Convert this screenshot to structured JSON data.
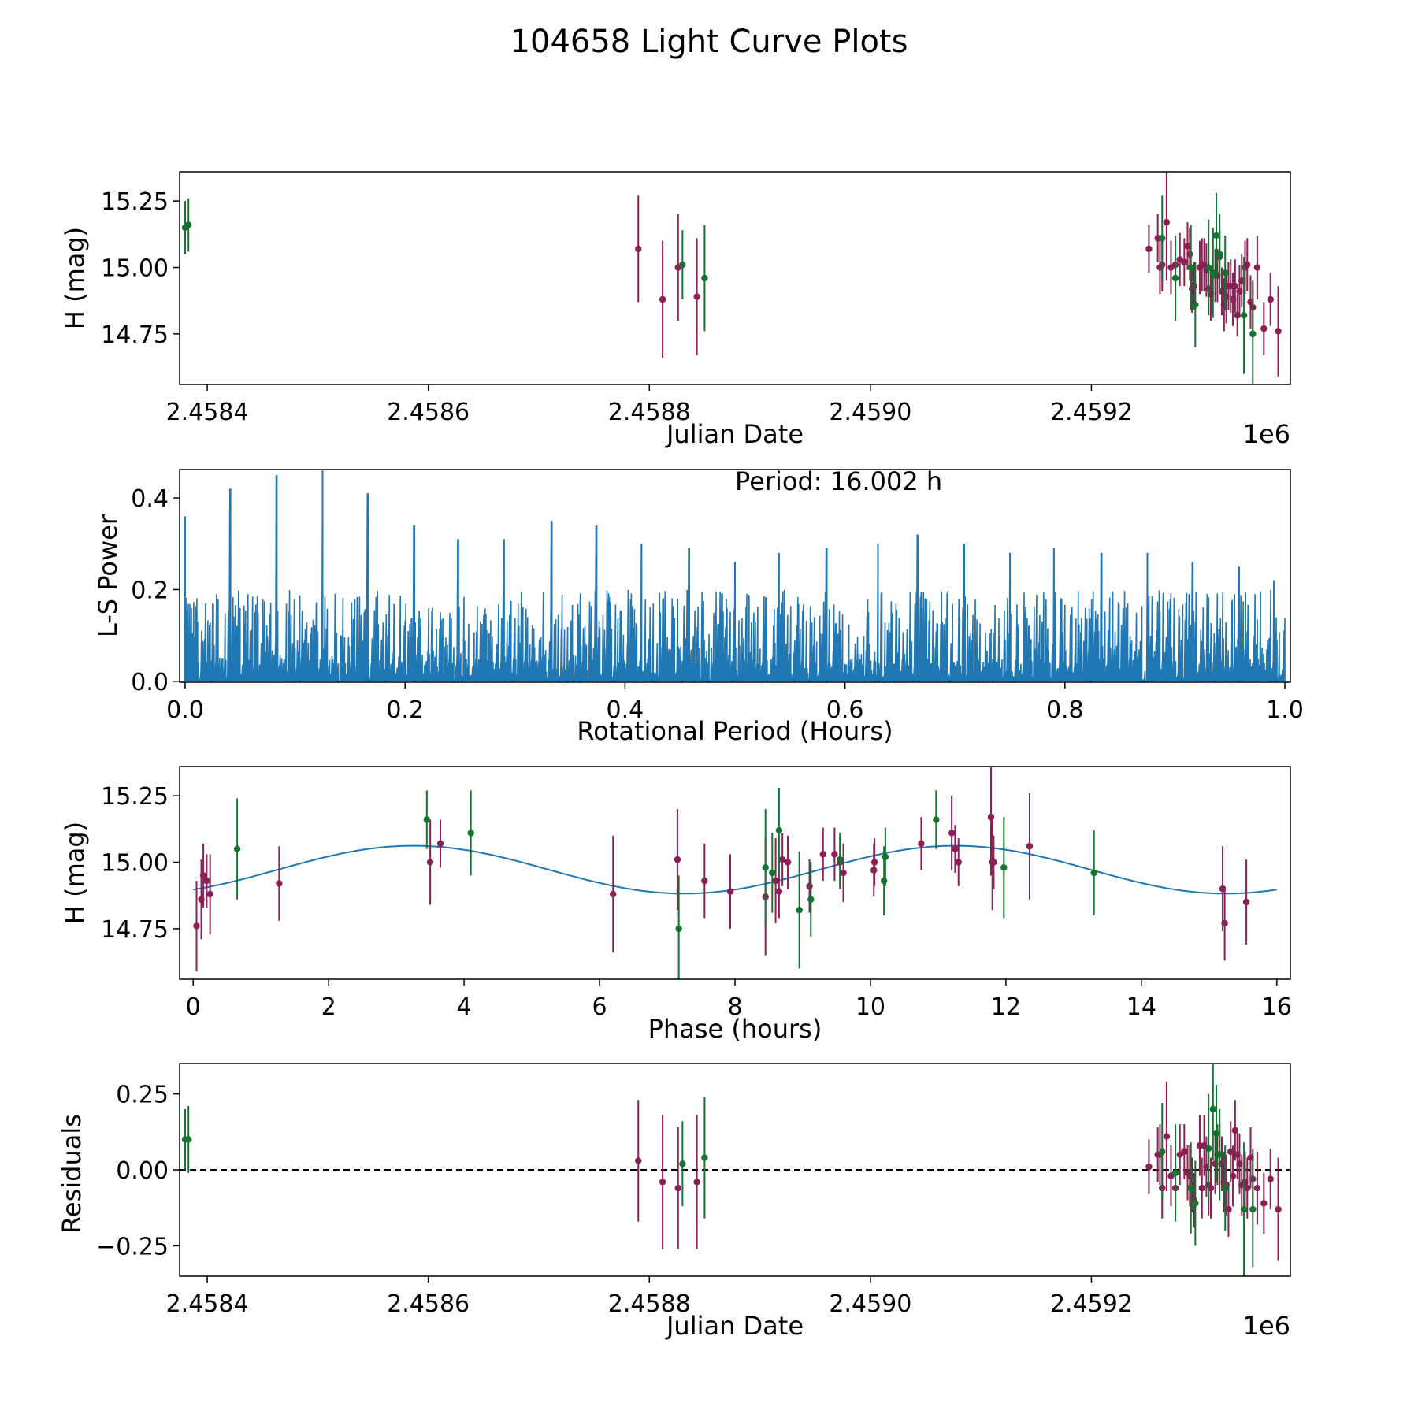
{
  "figure": {
    "title": "104658 Light Curve Plots",
    "colors": {
      "accent": "#1f77b4",
      "filter_a": "#8b1f56",
      "filter_b": "#13742f",
      "axis": "#000000",
      "zero_line": "#000000"
    }
  },
  "chart_data": [
    {
      "type": "scatter",
      "name": "light-curve",
      "xlabel": "Julian Date",
      "ylabel": "H (mag)",
      "offset_label": "1e6",
      "xlim": [
        2.458375,
        2.45938
      ],
      "ylim": [
        14.56,
        15.36
      ],
      "xticks": [
        2.4584,
        2.4586,
        2.4588,
        2.459,
        2.4592
      ],
      "xtick_labels": [
        "2.4584",
        "2.4586",
        "2.4588",
        "2.4590",
        "2.4592"
      ],
      "yticks": [
        14.75,
        15.0,
        15.25
      ],
      "ytick_labels": [
        "14.75",
        "15.00",
        "15.25"
      ],
      "series": [
        {
          "name": "filter-a",
          "color": "#8b1f56",
          "x": [
            2.45879,
            2.458812,
            2.458826,
            2.458843,
            2.459252,
            2.45926,
            2.459262,
            2.459264,
            2.459268,
            2.459272,
            2.459276,
            2.45928,
            2.459284,
            2.459287,
            2.459289,
            2.459291,
            2.459293,
            2.459298,
            2.4593,
            2.459302,
            2.459304,
            2.459306,
            2.459308,
            2.459312,
            2.459314,
            2.459316,
            2.459318,
            2.45932,
            2.459322,
            2.459324,
            2.459326,
            2.459328,
            2.45933,
            2.459332,
            2.459334,
            2.459336,
            2.459339,
            2.459341,
            2.459344,
            2.459346,
            2.45935,
            2.459356,
            2.459362,
            2.459369
          ],
          "y": [
            15.07,
            14.88,
            15.0,
            14.89,
            15.07,
            15.11,
            15.0,
            15.01,
            15.17,
            15.0,
            15.01,
            15.03,
            15.02,
            15.08,
            15.05,
            14.92,
            14.93,
            15.0,
            15.01,
            15.01,
            14.99,
            14.92,
            14.9,
            14.97,
            14.97,
            15.04,
            14.91,
            14.86,
            14.89,
            14.93,
            14.93,
            14.88,
            14.93,
            14.82,
            14.91,
            14.95,
            15.0,
            15.01,
            14.87,
            14.85,
            15.0,
            14.77,
            14.88,
            14.76
          ],
          "err": [
            0.2,
            0.22,
            0.2,
            0.22,
            0.09,
            0.09,
            0.1,
            0.1,
            0.22,
            0.1,
            0.09,
            0.1,
            0.09,
            0.09,
            0.1,
            0.09,
            0.09,
            0.1,
            0.1,
            0.1,
            0.1,
            0.1,
            0.1,
            0.1,
            0.1,
            0.1,
            0.09,
            0.1,
            0.1,
            0.09,
            0.1,
            0.1,
            0.1,
            0.08,
            0.1,
            0.1,
            0.1,
            0.1,
            0.1,
            0.1,
            0.12,
            0.1,
            0.1,
            0.17
          ]
        },
        {
          "name": "filter-b",
          "color": "#13742f",
          "x": [
            2.45838,
            2.458383,
            2.45883,
            2.45885,
            2.459264,
            2.459276,
            2.45929,
            2.459294,
            2.459306,
            2.45931,
            2.459313,
            2.459316,
            2.459321,
            2.459338,
            2.459346
          ],
          "y": [
            15.15,
            15.16,
            15.01,
            14.96,
            15.11,
            14.96,
            15.0,
            14.86,
            15.0,
            14.98,
            15.12,
            15.05,
            14.98,
            14.82,
            14.75
          ],
          "err": [
            0.1,
            0.1,
            0.13,
            0.2,
            0.16,
            0.16,
            0.16,
            0.16,
            0.18,
            0.17,
            0.16,
            0.15,
            0.14,
            0.22,
            0.19
          ]
        }
      ]
    },
    {
      "type": "line",
      "name": "periodogram",
      "xlabel": "Rotational Period (Hours)",
      "ylabel": "L-S Power",
      "annotation": "Period: 16.002 h",
      "xlim": [
        -0.005,
        1.005
      ],
      "ylim": [
        -0.002,
        0.462
      ],
      "xticks": [
        0.0,
        0.2,
        0.4,
        0.6,
        0.8,
        1.0
      ],
      "xtick_labels": [
        "0.0",
        "0.2",
        "0.4",
        "0.6",
        "0.8",
        "1.0"
      ],
      "yticks": [
        0.0,
        0.2,
        0.4
      ],
      "ytick_labels": [
        "0.0",
        "0.2",
        "0.4"
      ],
      "color": "#1f77b4",
      "x_range": [
        0.0,
        1.0
      ],
      "sample_count": 1400,
      "dense_floor": 0.05,
      "typical_peak": 0.15,
      "peaks": [
        {
          "x": 0.0,
          "y": 0.36
        },
        {
          "x": 0.041,
          "y": 0.42
        },
        {
          "x": 0.083,
          "y": 0.45
        },
        {
          "x": 0.125,
          "y": 0.46
        },
        {
          "x": 0.166,
          "y": 0.41
        },
        {
          "x": 0.208,
          "y": 0.34
        },
        {
          "x": 0.248,
          "y": 0.31
        },
        {
          "x": 0.29,
          "y": 0.31
        },
        {
          "x": 0.333,
          "y": 0.35
        },
        {
          "x": 0.374,
          "y": 0.34
        },
        {
          "x": 0.415,
          "y": 0.3
        },
        {
          "x": 0.458,
          "y": 0.29
        },
        {
          "x": 0.5,
          "y": 0.26
        },
        {
          "x": 0.54,
          "y": 0.28
        },
        {
          "x": 0.583,
          "y": 0.29
        },
        {
          "x": 0.63,
          "y": 0.3
        },
        {
          "x": 0.666,
          "y": 0.32
        },
        {
          "x": 0.708,
          "y": 0.3
        },
        {
          "x": 0.75,
          "y": 0.28
        },
        {
          "x": 0.79,
          "y": 0.29
        },
        {
          "x": 0.833,
          "y": 0.28
        },
        {
          "x": 0.875,
          "y": 0.28
        },
        {
          "x": 0.916,
          "y": 0.26
        },
        {
          "x": 0.958,
          "y": 0.25
        },
        {
          "x": 0.99,
          "y": 0.22
        }
      ]
    },
    {
      "type": "scatter",
      "name": "phased-light-curve",
      "xlabel": "Phase (hours)",
      "ylabel": "H (mag)",
      "xlim": [
        -0.2,
        16.2
      ],
      "ylim": [
        14.56,
        15.36
      ],
      "xticks": [
        0,
        2,
        4,
        6,
        8,
        10,
        12,
        14,
        16
      ],
      "xtick_labels": [
        "0",
        "2",
        "4",
        "6",
        "8",
        "10",
        "12",
        "14",
        "16"
      ],
      "yticks": [
        14.75,
        15.0,
        15.25
      ],
      "ytick_labels": [
        "14.75",
        "15.00",
        "15.25"
      ],
      "fit": {
        "name": "sine-fit",
        "color": "#1f77b4",
        "mean": 14.972,
        "amplitude": 0.09,
        "period": 8.0,
        "phase_of_max": 3.25,
        "x_range": [
          0,
          16
        ]
      },
      "series": [
        {
          "name": "filter-a",
          "color": "#8b1f56",
          "x": [
            0.05,
            0.12,
            0.15,
            0.2,
            0.25,
            1.27,
            3.5,
            3.65,
            6.2,
            7.15,
            7.55,
            7.93,
            8.45,
            8.6,
            8.65,
            8.7,
            8.78,
            9.1,
            9.3,
            9.47,
            9.55,
            9.6,
            10.05,
            10.06,
            10.75,
            11.2,
            11.25,
            11.3,
            11.78,
            11.8,
            11.82,
            12.35,
            15.2,
            15.23,
            15.55
          ],
          "y": [
            14.76,
            14.86,
            14.95,
            14.93,
            14.88,
            14.92,
            15.0,
            15.07,
            14.88,
            15.01,
            14.93,
            14.89,
            14.87,
            14.93,
            14.89,
            15.01,
            15.0,
            14.91,
            15.03,
            15.03,
            15.0,
            14.96,
            14.97,
            15.0,
            15.07,
            15.11,
            15.05,
            15.0,
            15.17,
            15.0,
            15.0,
            15.06,
            14.9,
            14.77,
            14.85
          ],
          "err": [
            0.17,
            0.15,
            0.12,
            0.1,
            0.15,
            0.14,
            0.16,
            0.09,
            0.22,
            0.19,
            0.14,
            0.14,
            0.22,
            0.16,
            0.1,
            0.1,
            0.1,
            0.1,
            0.1,
            0.1,
            0.1,
            0.11,
            0.1,
            0.09,
            0.1,
            0.14,
            0.09,
            0.09,
            0.22,
            0.18,
            0.1,
            0.2,
            0.16,
            0.14,
            0.16
          ]
        },
        {
          "name": "filter-b",
          "color": "#13742f",
          "x": [
            0.65,
            3.45,
            4.1,
            7.17,
            8.45,
            8.55,
            8.65,
            8.95,
            9.12,
            9.55,
            10.2,
            10.22,
            10.97,
            11.97,
            13.3
          ],
          "y": [
            15.05,
            15.16,
            15.11,
            14.75,
            14.98,
            14.96,
            15.12,
            14.82,
            14.86,
            15.01,
            14.93,
            15.02,
            15.16,
            14.98,
            14.96
          ],
          "err": [
            0.19,
            0.11,
            0.16,
            0.2,
            0.22,
            0.15,
            0.16,
            0.22,
            0.14,
            0.1,
            0.13,
            0.11,
            0.11,
            0.19,
            0.16
          ]
        }
      ]
    },
    {
      "type": "scatter",
      "name": "residuals",
      "xlabel": "Julian Date",
      "ylabel": "Residuals",
      "offset_label": "1e6",
      "xlim": [
        2.458375,
        2.45938
      ],
      "ylim": [
        -0.35,
        0.35
      ],
      "xticks": [
        2.4584,
        2.4586,
        2.4588,
        2.459,
        2.4592
      ],
      "xtick_labels": [
        "2.4584",
        "2.4586",
        "2.4588",
        "2.4590",
        "2.4592"
      ],
      "yticks": [
        -0.25,
        0.0,
        0.25
      ],
      "ytick_labels": [
        "−0.25",
        "0.00",
        "0.25"
      ],
      "reference_line": 0.0,
      "series": [
        {
          "name": "filter-a",
          "color": "#8b1f56",
          "x": [
            2.45879,
            2.458812,
            2.458826,
            2.458843,
            2.459252,
            2.45926,
            2.459262,
            2.459264,
            2.459268,
            2.459272,
            2.459276,
            2.45928,
            2.459284,
            2.459287,
            2.459289,
            2.459291,
            2.459293,
            2.459298,
            2.4593,
            2.459302,
            2.459304,
            2.459306,
            2.459308,
            2.459312,
            2.459314,
            2.459316,
            2.459318,
            2.45932,
            2.459322,
            2.459324,
            2.459326,
            2.459328,
            2.45933,
            2.459332,
            2.459334,
            2.459336,
            2.459339,
            2.459341,
            2.459344,
            2.459346,
            2.45935,
            2.459356,
            2.459362,
            2.459369
          ],
          "y": [
            0.03,
            -0.04,
            -0.06,
            -0.04,
            0.01,
            0.05,
            0.05,
            -0.06,
            0.11,
            -0.02,
            -0.06,
            0.05,
            0.06,
            -0.01,
            -0.02,
            -0.05,
            -0.1,
            0.08,
            -0.06,
            0.08,
            0.01,
            -0.05,
            -0.06,
            0.02,
            0.05,
            0.05,
            0.02,
            -0.04,
            -0.05,
            -0.13,
            0.06,
            -0.02,
            0.13,
            0.05,
            0.02,
            -0.05,
            -0.04,
            -0.06,
            0.04,
            -0.03,
            -0.06,
            -0.11,
            -0.03,
            -0.13
          ],
          "err": [
            0.2,
            0.22,
            0.2,
            0.22,
            0.09,
            0.09,
            0.1,
            0.1,
            0.18,
            0.1,
            0.09,
            0.1,
            0.09,
            0.09,
            0.1,
            0.09,
            0.09,
            0.1,
            0.1,
            0.1,
            0.1,
            0.1,
            0.1,
            0.1,
            0.1,
            0.1,
            0.09,
            0.1,
            0.1,
            0.09,
            0.1,
            0.1,
            0.1,
            0.08,
            0.1,
            0.1,
            0.1,
            0.1,
            0.1,
            0.1,
            0.12,
            0.1,
            0.1,
            0.17
          ]
        },
        {
          "name": "filter-b",
          "color": "#13742f",
          "x": [
            2.45838,
            2.458383,
            2.45883,
            2.45885,
            2.459264,
            2.459276,
            2.45929,
            2.459294,
            2.459306,
            2.45931,
            2.459313,
            2.459316,
            2.459321,
            2.459338,
            2.459346
          ],
          "y": [
            0.1,
            0.1,
            0.02,
            0.04,
            0.06,
            -0.01,
            -0.06,
            -0.11,
            0.07,
            0.2,
            0.12,
            0.05,
            -0.06,
            -0.13,
            -0.13
          ],
          "err": [
            0.1,
            0.11,
            0.14,
            0.2,
            0.16,
            0.16,
            0.15,
            0.14,
            0.18,
            0.17,
            0.16,
            0.15,
            0.14,
            0.22,
            0.19
          ]
        }
      ]
    }
  ]
}
